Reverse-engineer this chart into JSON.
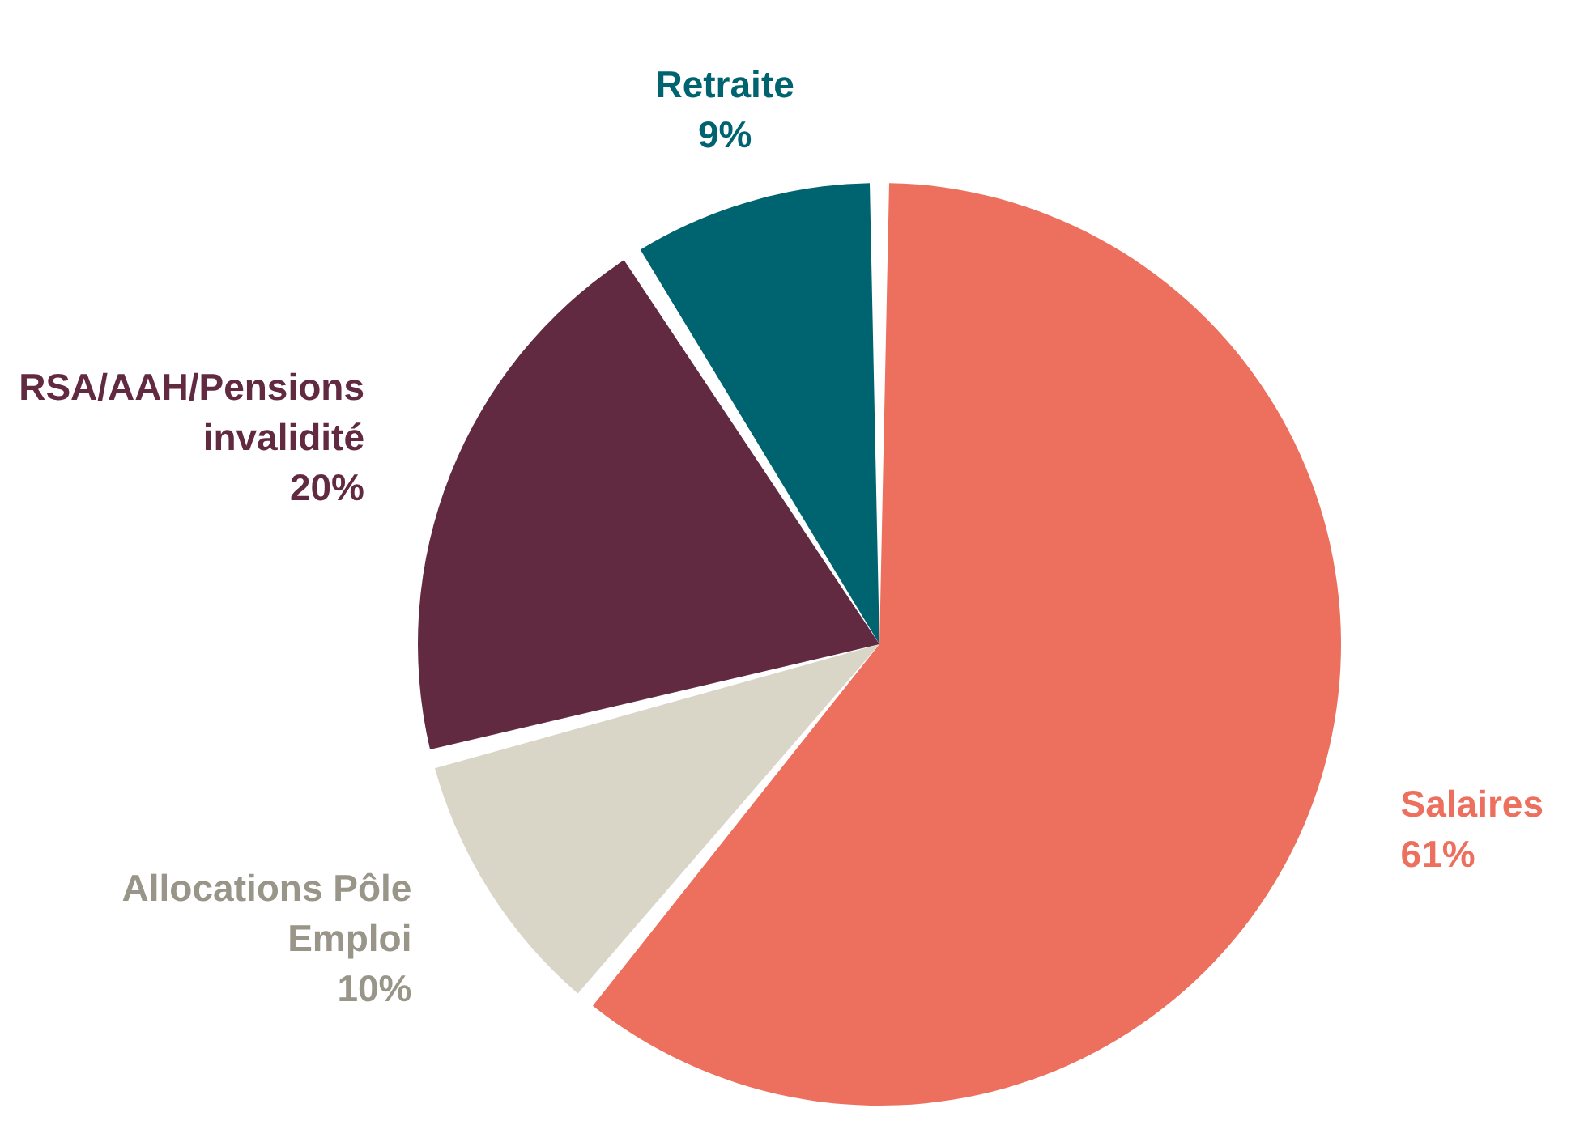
{
  "chart_data": {
    "type": "pie",
    "categories": [
      "Salaires",
      "Allocations Pôle Emploi",
      "RSA/AAH/Pensions invalidité",
      "Retraite"
    ],
    "values": [
      61,
      10,
      20,
      9
    ],
    "colors": [
      "#ed6f5e",
      "#d9d5c7",
      "#612a40",
      "#006370"
    ],
    "value_labels": [
      "61%",
      "10%",
      "20%",
      "9%"
    ]
  }
}
